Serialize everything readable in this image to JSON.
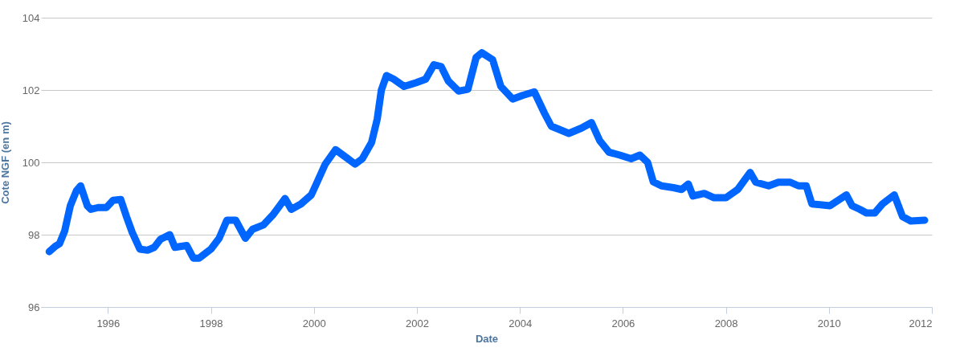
{
  "chart_data": {
    "type": "line",
    "xlabel": "Date",
    "ylabel": "Cote NGF (en m)",
    "x": [
      1994.86,
      1994.98,
      1995.06,
      1995.16,
      1995.27,
      1995.39,
      1995.47,
      1995.6,
      1995.67,
      1995.81,
      1995.97,
      1996.1,
      1996.25,
      1996.36,
      1996.47,
      1996.62,
      1996.77,
      1996.9,
      1997.02,
      1997.2,
      1997.3,
      1997.53,
      1997.66,
      1997.77,
      1998.0,
      1998.16,
      1998.31,
      1998.48,
      1998.67,
      1998.81,
      1999.02,
      1999.2,
      1999.44,
      1999.56,
      1999.75,
      1999.95,
      2000.03,
      2000.22,
      2000.42,
      2000.66,
      2000.8,
      2000.94,
      2001.12,
      2001.23,
      2001.31,
      2001.41,
      2001.55,
      2001.75,
      2001.98,
      2002.17,
      2002.27,
      2002.33,
      2002.47,
      2002.61,
      2002.81,
      2002.99,
      2003.15,
      2003.26,
      2003.47,
      2003.63,
      2003.86,
      2004.05,
      2004.28,
      2004.48,
      2004.61,
      2004.95,
      2005.2,
      2005.39,
      2005.55,
      2005.73,
      2005.94,
      2006.16,
      2006.33,
      2006.48,
      2006.59,
      2006.75,
      2006.98,
      2007.14,
      2007.27,
      2007.36,
      2007.58,
      2007.77,
      2008.0,
      2008.23,
      2008.47,
      2008.58,
      2008.83,
      2009.02,
      2009.25,
      2009.41,
      2009.56,
      2009.67,
      2010.02,
      2010.34,
      2010.45,
      2010.6,
      2010.73,
      2010.89,
      2011.04,
      2011.27,
      2011.43,
      2011.59,
      2011.86
    ],
    "series": [
      {
        "color": "#0066ff",
        "values": [
          97.53,
          97.68,
          97.75,
          98.1,
          98.8,
          99.22,
          99.35,
          98.8,
          98.7,
          98.75,
          98.75,
          98.95,
          98.97,
          98.5,
          98.07,
          97.6,
          97.57,
          97.65,
          97.87,
          98.0,
          97.65,
          97.7,
          97.35,
          97.35,
          97.6,
          97.9,
          98.4,
          98.4,
          97.9,
          98.15,
          98.27,
          98.54,
          99.0,
          98.7,
          98.85,
          99.1,
          99.35,
          99.95,
          100.35,
          100.1,
          99.95,
          100.1,
          100.55,
          101.2,
          102.0,
          102.4,
          102.3,
          102.1,
          102.2,
          102.3,
          102.55,
          102.7,
          102.65,
          102.25,
          101.97,
          102.02,
          102.9,
          103.03,
          102.84,
          102.1,
          101.75,
          101.85,
          101.95,
          101.35,
          101.0,
          100.8,
          100.95,
          101.1,
          100.6,
          100.28,
          100.2,
          100.1,
          100.2,
          100.0,
          99.46,
          99.35,
          99.3,
          99.25,
          99.4,
          99.07,
          99.14,
          99.02,
          99.02,
          99.25,
          99.72,
          99.45,
          99.35,
          99.45,
          99.45,
          99.35,
          99.35,
          98.85,
          98.8,
          99.1,
          98.8,
          98.7,
          98.6,
          98.6,
          98.85,
          99.1,
          98.5,
          98.38,
          98.4
        ]
      }
    ],
    "xlim": [
      1994.7,
      2012
    ],
    "xticks": [
      1996,
      1998,
      2000,
      2002,
      2004,
      2006,
      2008,
      2010,
      2012
    ],
    "ylim": [
      96,
      104
    ],
    "yticks": [
      96,
      98,
      100,
      102,
      104
    ],
    "grid": "y",
    "marker": "none",
    "line_style": "solid"
  }
}
